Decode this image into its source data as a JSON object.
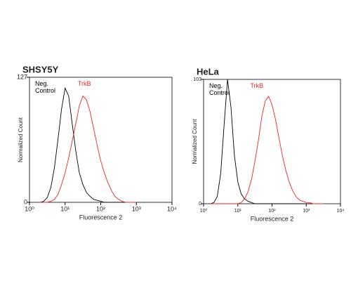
{
  "chart_data": [
    {
      "type": "line",
      "title": "SHSY5Y",
      "xlabel": "Fluorescence 2",
      "ylabel": "Normalized Count",
      "xscale": "log",
      "xlim": [
        1,
        10000
      ],
      "ylim": [
        0,
        127
      ],
      "xticks": [
        {
          "value": 1,
          "label": "10⁰"
        },
        {
          "value": 10,
          "label": "10¹"
        },
        {
          "value": 100,
          "label": "10²"
        },
        {
          "value": 1000,
          "label": "10³"
        },
        {
          "value": 10000,
          "label": "10⁴"
        }
      ],
      "yticks": [
        0,
        127
      ],
      "x": [
        2,
        2.51,
        3.16,
        3.98,
        5.01,
        6.31,
        7.94,
        10,
        12.6,
        15.8,
        20,
        25.1,
        31.6,
        39.8,
        50.1,
        63.1,
        79.4,
        100,
        126,
        158,
        200,
        251,
        316,
        398,
        501,
        631,
        794,
        1000
      ],
      "series": [
        {
          "name": "Neg. Control",
          "color": "#000000",
          "values": [
            0,
            1,
            5,
            15,
            35,
            64,
            95,
            116,
            108,
            80,
            52,
            30,
            18,
            10,
            6,
            3,
            2,
            1,
            0,
            0,
            0,
            0,
            0,
            0,
            0,
            0,
            0,
            0
          ]
        },
        {
          "name": "TrkB",
          "color": "#e8262a",
          "values": [
            0,
            0,
            0,
            1,
            3,
            8,
            18,
            30,
            45,
            62,
            80,
            98,
            108,
            104,
            92,
            75,
            58,
            42,
            30,
            20,
            12,
            6,
            3,
            1,
            0,
            0,
            0,
            0
          ]
        }
      ]
    },
    {
      "type": "line",
      "title": "HeLa",
      "xlabel": "Fluorescence 2",
      "ylabel": "Normalized Count",
      "xscale": "log",
      "xlim": [
        1,
        10000
      ],
      "ylim": [
        0,
        103
      ],
      "xticks": [
        {
          "value": 1,
          "label": "10⁰"
        },
        {
          "value": 10,
          "label": "10¹"
        },
        {
          "value": 100,
          "label": "10²"
        },
        {
          "value": 1000,
          "label": "10³"
        },
        {
          "value": 10000,
          "label": "10⁴"
        }
      ],
      "yticks": [
        0,
        103
      ],
      "x": [
        1.58,
        2,
        2.51,
        3.16,
        3.98,
        5.01,
        6.31,
        7.94,
        10,
        12.6,
        15.8,
        20,
        25.1,
        31.6,
        39.8,
        50.1,
        63.1,
        79.4,
        100,
        126,
        158,
        200,
        251,
        316,
        398,
        501,
        631,
        794,
        1000,
        1259,
        1585,
        1995,
        2512,
        3162
      ],
      "series": [
        {
          "name": "Neg. Control",
          "color": "#000000",
          "values": [
            0,
            1,
            6,
            25,
            65,
            103,
            80,
            40,
            18,
            8,
            4,
            2,
            1,
            0,
            0,
            0,
            0,
            0,
            0,
            0,
            0,
            0,
            0,
            0,
            0,
            0,
            0,
            0,
            0,
            0,
            0,
            0,
            0,
            0
          ]
        },
        {
          "name": "TrkB",
          "color": "#e8262a",
          "values": [
            0,
            0,
            0,
            0,
            0,
            0,
            0,
            0,
            0,
            1,
            4,
            10,
            20,
            35,
            52,
            72,
            85,
            89,
            82,
            70,
            55,
            40,
            28,
            18,
            11,
            6,
            3,
            2,
            1,
            1,
            0,
            0,
            0,
            0
          ]
        }
      ]
    }
  ]
}
